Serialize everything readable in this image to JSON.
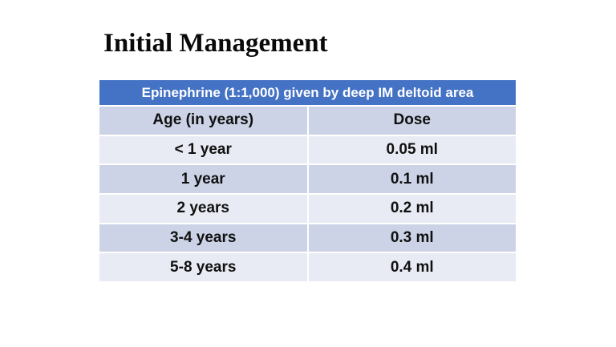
{
  "slide": {
    "title": "Initial Management"
  },
  "table": {
    "header": "Epinephrine (1:1,000) given by deep IM deltoid area",
    "columns": [
      "Age (in years)",
      "Dose"
    ],
    "rows": [
      [
        "< 1 year",
        "0.05 ml"
      ],
      [
        "1 year",
        "0.1 ml"
      ],
      [
        "2 years",
        "0.2 ml"
      ],
      [
        "3-4 years",
        "0.3 ml"
      ],
      [
        "5-8 years",
        "0.4 ml"
      ]
    ],
    "colors": {
      "header_bg": "#4472c4",
      "header_text": "#ffffff",
      "band_dark": "#ccd3e6",
      "band_light": "#e9ebf4",
      "body_text": "#101010"
    }
  }
}
